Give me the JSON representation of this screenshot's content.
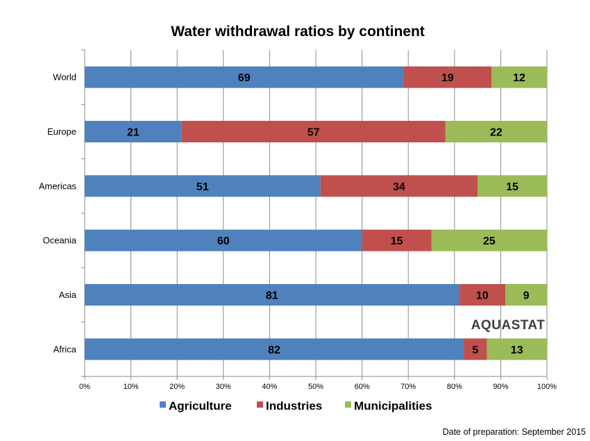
{
  "chart_data": {
    "type": "bar",
    "orientation": "horizontal",
    "stacked": true,
    "percent": true,
    "title": "Water withdrawal ratios by continent",
    "categories": [
      "World",
      "Europe",
      "Americas",
      "Oceania",
      "Asia",
      "Africa"
    ],
    "series": [
      {
        "name": "Agriculture",
        "color": "#4f81bd",
        "values": [
          69,
          21,
          51,
          60,
          81,
          82
        ]
      },
      {
        "name": "Industries",
        "color": "#c0504d",
        "values": [
          19,
          57,
          34,
          15,
          10,
          5
        ]
      },
      {
        "name": "Municipalities",
        "color": "#9bbb59",
        "values": [
          12,
          22,
          15,
          25,
          9,
          13
        ]
      }
    ],
    "xlim": [
      0,
      100
    ],
    "xticks": [
      "0%",
      "10%",
      "20%",
      "30%",
      "40%",
      "50%",
      "60%",
      "70%",
      "80%",
      "90%",
      "100%"
    ],
    "grid": "vertical",
    "legend_position": "bottom",
    "xlabel": "",
    "ylabel": ""
  },
  "watermark": "AQUASTAT",
  "footnote": "Date of preparation: September 2015"
}
